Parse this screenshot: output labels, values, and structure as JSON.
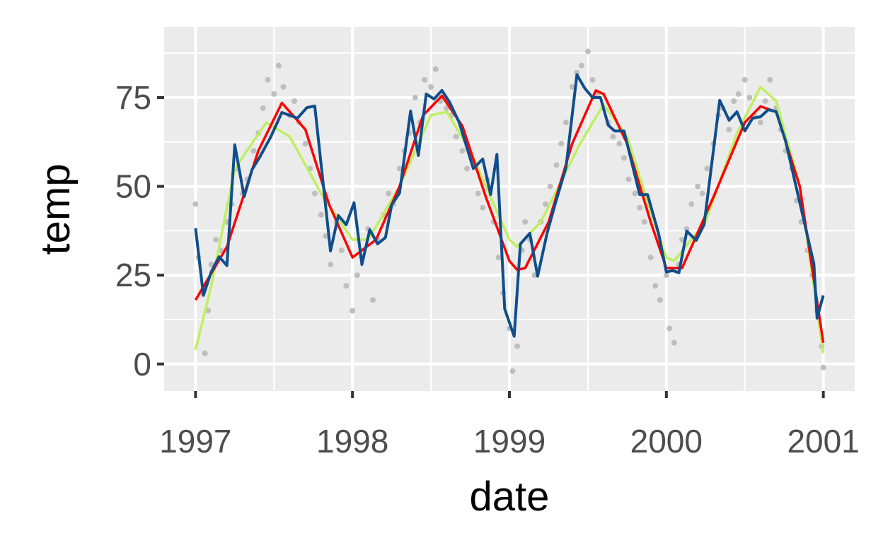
{
  "chart_data": {
    "type": "line",
    "title": "",
    "xlabel": "date",
    "ylabel": "temp",
    "xlim": [
      1996.8,
      2001.2
    ],
    "ylim": [
      -7.6,
      94.9
    ],
    "xticks": [
      1997,
      1998,
      1999,
      2000,
      2001
    ],
    "xtick_labels": [
      "1997",
      "1998",
      "1999",
      "2000",
      "2001"
    ],
    "yticks": [
      0,
      25,
      50,
      75
    ],
    "ytick_labels": [
      "0",
      "25",
      "50",
      "75"
    ],
    "grid": true,
    "background": "#ebebeb",
    "colors": {
      "points": "#bebebe",
      "raw_line": "#104e8b",
      "smooth_red": "#ff0000",
      "smooth_green": "#bfef60"
    },
    "points": [
      [
        1997.0,
        45
      ],
      [
        1997.02,
        30
      ],
      [
        1997.04,
        20
      ],
      [
        1997.06,
        3
      ],
      [
        1997.08,
        15
      ],
      [
        1997.1,
        28
      ],
      [
        1997.13,
        35
      ],
      [
        1997.16,
        32
      ],
      [
        1997.2,
        40
      ],
      [
        1997.23,
        45
      ],
      [
        1997.26,
        55
      ],
      [
        1997.3,
        48
      ],
      [
        1997.33,
        52
      ],
      [
        1997.37,
        60
      ],
      [
        1997.4,
        65
      ],
      [
        1997.43,
        72
      ],
      [
        1997.46,
        80
      ],
      [
        1997.5,
        76
      ],
      [
        1997.53,
        84
      ],
      [
        1997.56,
        78
      ],
      [
        1997.6,
        70
      ],
      [
        1997.63,
        74
      ],
      [
        1997.66,
        68
      ],
      [
        1997.7,
        62
      ],
      [
        1997.73,
        55
      ],
      [
        1997.76,
        48
      ],
      [
        1997.8,
        42
      ],
      [
        1997.83,
        36
      ],
      [
        1997.86,
        28
      ],
      [
        1997.9,
        40
      ],
      [
        1997.93,
        32
      ],
      [
        1997.96,
        22
      ],
      [
        1998.0,
        15
      ],
      [
        1998.03,
        25
      ],
      [
        1998.06,
        30
      ],
      [
        1998.1,
        38
      ],
      [
        1998.13,
        18
      ],
      [
        1998.16,
        35
      ],
      [
        1998.2,
        42
      ],
      [
        1998.23,
        48
      ],
      [
        1998.26,
        45
      ],
      [
        1998.3,
        55
      ],
      [
        1998.33,
        60
      ],
      [
        1998.36,
        65
      ],
      [
        1998.4,
        75
      ],
      [
        1998.43,
        68
      ],
      [
        1998.46,
        80
      ],
      [
        1998.5,
        78
      ],
      [
        1998.53,
        83
      ],
      [
        1998.56,
        74
      ],
      [
        1998.6,
        72
      ],
      [
        1998.63,
        70
      ],
      [
        1998.66,
        64
      ],
      [
        1998.7,
        60
      ],
      [
        1998.73,
        55
      ],
      [
        1998.76,
        58
      ],
      [
        1998.8,
        48
      ],
      [
        1998.83,
        44
      ],
      [
        1998.86,
        52
      ],
      [
        1998.9,
        40
      ],
      [
        1998.93,
        30
      ],
      [
        1998.96,
        20
      ],
      [
        1999.0,
        10
      ],
      [
        1999.02,
        -2
      ],
      [
        1999.05,
        5
      ],
      [
        1999.08,
        32
      ],
      [
        1999.1,
        40
      ],
      [
        1999.13,
        35
      ],
      [
        1999.16,
        25
      ],
      [
        1999.2,
        40
      ],
      [
        1999.23,
        45
      ],
      [
        1999.26,
        50
      ],
      [
        1999.3,
        56
      ],
      [
        1999.33,
        62
      ],
      [
        1999.36,
        68
      ],
      [
        1999.4,
        78
      ],
      [
        1999.43,
        82
      ],
      [
        1999.46,
        84
      ],
      [
        1999.5,
        88
      ],
      [
        1999.53,
        80
      ],
      [
        1999.56,
        76
      ],
      [
        1999.6,
        72
      ],
      [
        1999.63,
        68
      ],
      [
        1999.66,
        64
      ],
      [
        1999.7,
        62
      ],
      [
        1999.73,
        58
      ],
      [
        1999.76,
        52
      ],
      [
        1999.8,
        48
      ],
      [
        1999.83,
        44
      ],
      [
        1999.86,
        40
      ],
      [
        1999.9,
        30
      ],
      [
        1999.93,
        22
      ],
      [
        1999.96,
        18
      ],
      [
        2000.0,
        25
      ],
      [
        2000.02,
        10
      ],
      [
        2000.05,
        6
      ],
      [
        2000.08,
        28
      ],
      [
        2000.1,
        35
      ],
      [
        2000.13,
        38
      ],
      [
        2000.16,
        45
      ],
      [
        2000.2,
        50
      ],
      [
        2000.23,
        48
      ],
      [
        2000.26,
        55
      ],
      [
        2000.3,
        62
      ],
      [
        2000.33,
        70
      ],
      [
        2000.36,
        72
      ],
      [
        2000.4,
        66
      ],
      [
        2000.43,
        74
      ],
      [
        2000.46,
        76
      ],
      [
        2000.5,
        80
      ],
      [
        2000.53,
        75
      ],
      [
        2000.56,
        70
      ],
      [
        2000.6,
        68
      ],
      [
        2000.63,
        74
      ],
      [
        2000.66,
        80
      ],
      [
        2000.7,
        72
      ],
      [
        2000.73,
        66
      ],
      [
        2000.76,
        60
      ],
      [
        2000.8,
        55
      ],
      [
        2000.83,
        46
      ],
      [
        2000.86,
        40
      ],
      [
        2000.9,
        32
      ],
      [
        2000.93,
        25
      ],
      [
        2000.96,
        15
      ],
      [
        2000.99,
        5
      ],
      [
        2001.0,
        -1
      ]
    ],
    "series": [
      {
        "style": "raw",
        "color": "#104e8b",
        "x": [
          1997.0,
          1997.05,
          1997.1,
          1997.15,
          1997.2,
          1997.25,
          1997.31,
          1997.36,
          1997.41,
          1997.48,
          1997.55,
          1997.65,
          1997.71,
          1997.76,
          1997.86,
          1997.91,
          1997.96,
          1998.01,
          1998.06,
          1998.11,
          1998.16,
          1998.21,
          1998.25,
          1998.3,
          1998.37,
          1998.42,
          1998.47,
          1998.52,
          1998.57,
          1998.62,
          1998.68,
          1998.77,
          1998.83,
          1998.88,
          1998.92,
          1998.97,
          1999.03,
          1999.07,
          1999.13,
          1999.18,
          1999.24,
          1999.29,
          1999.36,
          1999.43,
          1999.48,
          1999.53,
          1999.58,
          1999.63,
          1999.67,
          1999.73,
          1999.83,
          1999.88,
          1999.95,
          2000.0,
          2000.04,
          2000.08,
          2000.13,
          2000.19,
          2000.24,
          2000.34,
          2000.4,
          2000.45,
          2000.5,
          2000.55,
          2000.6,
          2000.65,
          2000.7,
          2000.76,
          2000.94,
          2000.96,
          2001.0
        ],
        "y": [
          38.2,
          19.3,
          25.9,
          30.2,
          27.7,
          61.7,
          47.1,
          54.7,
          58.3,
          64,
          70.8,
          69.2,
          72.2,
          72.6,
          31.8,
          41.8,
          39.2,
          45.4,
          28,
          37.8,
          33.8,
          35.6,
          44.8,
          48.1,
          71.2,
          58.7,
          76,
          74.6,
          77,
          73.6,
          68,
          55,
          57.7,
          47.7,
          59,
          15.5,
          7.8,
          33.8,
          36.8,
          24.7,
          36.8,
          44.8,
          55.3,
          81.4,
          77.6,
          75,
          75,
          67.2,
          65.6,
          65.6,
          47.7,
          47.7,
          36.8,
          25.9,
          26.3,
          25.7,
          37.4,
          34.8,
          39.2,
          74.2,
          68.6,
          71,
          65.6,
          69.2,
          69.6,
          71.6,
          71,
          62.7,
          28.2,
          12.9,
          19.3
        ]
      },
      {
        "style": "smooth",
        "color": "#ff0000",
        "x": [
          1997.0,
          1997.2,
          1997.4,
          1997.55,
          1997.7,
          1997.85,
          1998.0,
          1998.15,
          1998.3,
          1998.45,
          1998.57,
          1998.7,
          1998.85,
          1999.0,
          1999.05,
          1999.1,
          1999.25,
          1999.4,
          1999.55,
          1999.6,
          1999.75,
          1999.9,
          2000.0,
          2000.1,
          2000.3,
          2000.5,
          2000.6,
          2000.7,
          2000.85,
          2001.0
        ],
        "y": [
          18,
          33,
          60,
          73.5,
          66,
          45,
          30,
          35,
          50,
          70,
          75.5,
          67,
          47,
          29,
          26.5,
          27,
          40,
          62,
          77,
          76,
          62,
          40,
          27,
          27,
          47,
          68,
          72.5,
          71,
          50,
          6
        ]
      },
      {
        "style": "smooth",
        "color": "#bfef60",
        "x": [
          1997.0,
          1997.1,
          1997.25,
          1997.45,
          1997.6,
          1997.8,
          1998.0,
          1998.1,
          1998.3,
          1998.5,
          1998.6,
          1998.75,
          1998.9,
          1999.0,
          1999.05,
          1999.2,
          1999.45,
          1999.6,
          1999.75,
          1999.9,
          2000.0,
          2000.05,
          2000.25,
          2000.45,
          2000.6,
          2000.7,
          2000.85,
          2001.0
        ],
        "y": [
          4,
          22,
          55,
          68,
          64,
          48,
          35,
          35,
          50,
          70,
          71,
          60,
          45,
          35,
          33,
          40,
          62,
          73,
          64,
          43,
          30,
          29,
          40,
          65,
          78,
          74,
          50,
          3
        ]
      }
    ]
  }
}
